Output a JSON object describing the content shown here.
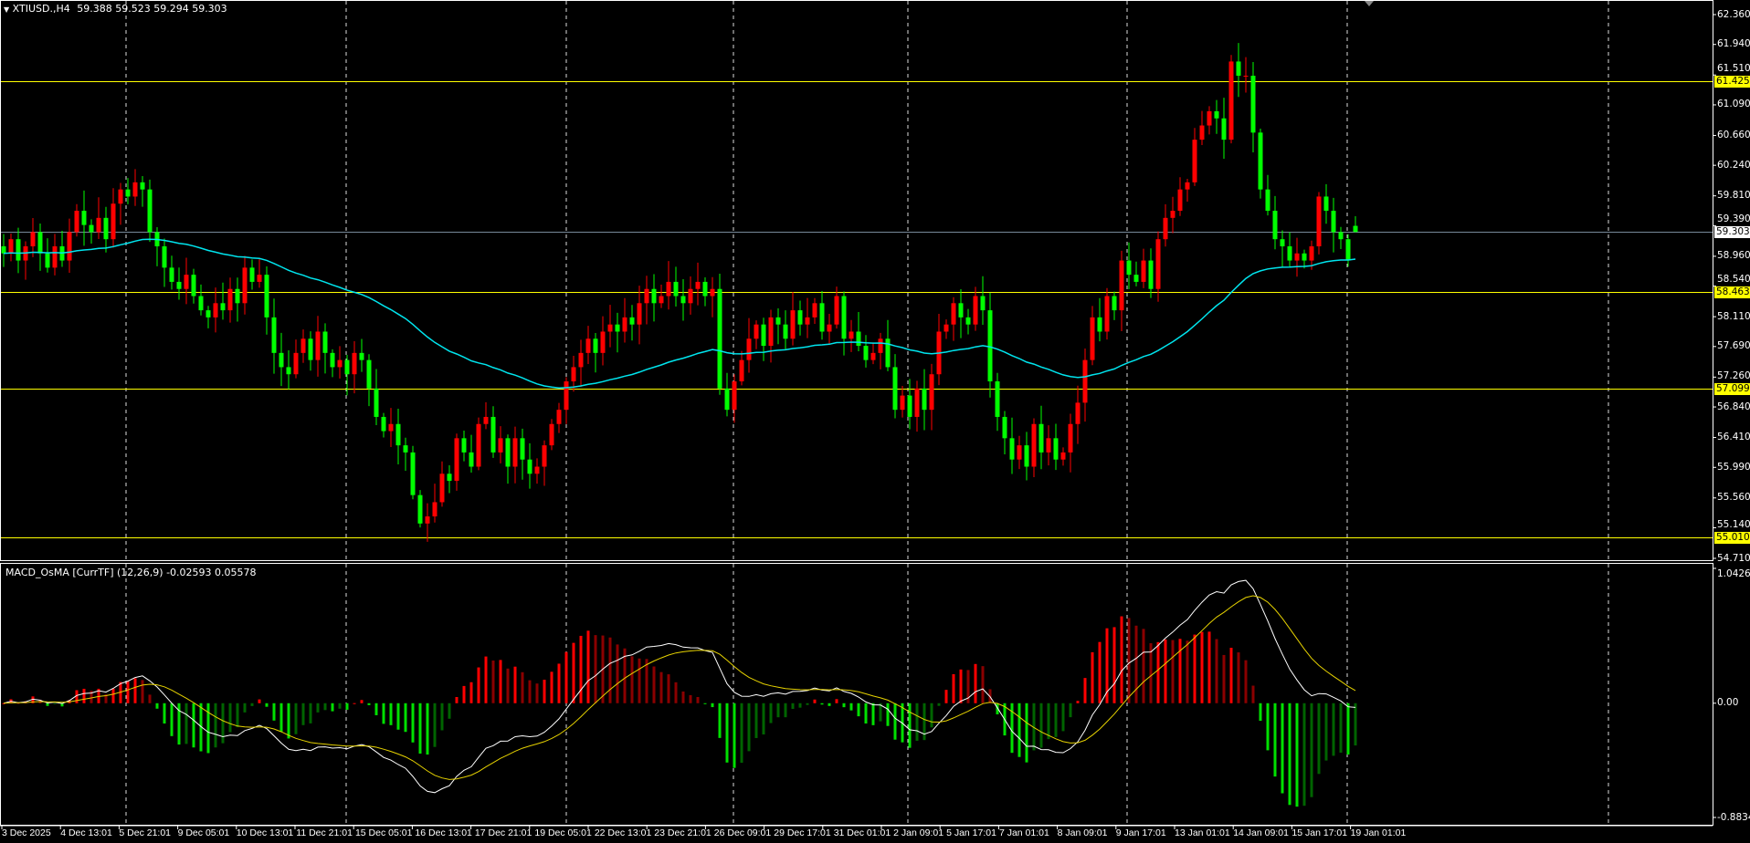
{
  "header": {
    "symbol_label": "XTIUSD.,H4",
    "ohlc": "59.388 59.523 59.294 59.303"
  },
  "indicator": {
    "label": "MACD_OsMA [CurrTF] (12,26,9) -0.02593 0.05578",
    "fast": 12,
    "slow": 26,
    "signal": 9,
    "axis_labels": [
      "1.04267",
      "0.00",
      "-0.88342"
    ],
    "axis_range": [
      -0.88342,
      1.04267
    ]
  },
  "colors": {
    "background": "#000000",
    "bear_candle": "#00ff00",
    "bull_candle": "#ff0000",
    "ma_line": "#00e5ee",
    "level_line": "#ffff00",
    "price_line": "#778899",
    "macd_line": "#ffffff",
    "signal_line": "#e6d200",
    "hist_pos_up": "#ff0000",
    "hist_pos_down": "#8b0000",
    "hist_neg_down": "#00e000",
    "hist_neg_up": "#006400"
  },
  "price_axis": {
    "ticks": [
      "62.360",
      "61.940",
      "61.510",
      "61.090",
      "60.660",
      "60.240",
      "59.810",
      "59.390",
      "58.960",
      "58.540",
      "58.110",
      "57.690",
      "57.260",
      "56.840",
      "56.410",
      "55.990",
      "55.560",
      "55.140",
      "54.710"
    ],
    "range": [
      54.71,
      62.36
    ],
    "levels": [
      "61.425",
      "58.463",
      "57.099",
      "55.010"
    ],
    "current_price": "59.303"
  },
  "time_axis": {
    "labels": [
      "3 Dec 2025",
      "4 Dec 13:01",
      "5 Dec 21:01",
      "9 Dec 05:01",
      "10 Dec 13:01",
      "11 Dec 21:01",
      "15 Dec 05:01",
      "16 Dec 13:01",
      "17 Dec 21:01",
      "19 Dec 05:01",
      "22 Dec 13:01",
      "23 Dec 21:01",
      "26 Dec 09:01",
      "29 Dec 17:01",
      "31 Dec 01:01",
      "2 Jan 09:01",
      "5 Jan 17:01",
      "7 Jan 01:01",
      "8 Jan 09:01",
      "9 Jan 17:01",
      "13 Jan 01:01",
      "14 Jan 09:01",
      "15 Jan 17:01",
      "19 Jan 01:01"
    ]
  },
  "chart_data": {
    "type": "candlestick",
    "timeframe": "H4",
    "closes": [
      59.0,
      59.2,
      58.9,
      59.1,
      59.3,
      59.0,
      58.8,
      59.1,
      58.9,
      59.3,
      59.6,
      59.4,
      59.3,
      59.5,
      59.2,
      59.7,
      59.9,
      59.8,
      60.0,
      59.9,
      59.3,
      59.1,
      58.8,
      58.6,
      58.5,
      58.7,
      58.4,
      58.2,
      58.1,
      58.3,
      58.2,
      58.5,
      58.3,
      58.8,
      58.6,
      58.7,
      58.1,
      57.6,
      57.4,
      57.3,
      57.6,
      57.8,
      57.5,
      57.9,
      57.6,
      57.4,
      57.5,
      57.3,
      57.6,
      57.5,
      57.1,
      56.7,
      56.5,
      56.6,
      56.3,
      56.2,
      55.6,
      55.2,
      55.3,
      55.5,
      55.9,
      55.8,
      56.4,
      56.2,
      56.0,
      56.6,
      56.7,
      56.2,
      56.4,
      56.0,
      56.4,
      56.1,
      55.9,
      56.0,
      56.3,
      56.6,
      56.8,
      57.2,
      57.4,
      57.6,
      57.8,
      57.6,
      57.9,
      58.0,
      57.9,
      58.1,
      58.0,
      58.3,
      58.5,
      58.3,
      58.4,
      58.6,
      58.4,
      58.3,
      58.5,
      58.6,
      58.4,
      58.5,
      57.1,
      56.8,
      57.2,
      57.5,
      57.8,
      58.0,
      57.7,
      58.1,
      58.0,
      57.8,
      58.2,
      58.0,
      58.1,
      58.3,
      57.9,
      58.0,
      58.4,
      57.8,
      57.9,
      57.7,
      57.5,
      57.6,
      57.8,
      57.4,
      56.8,
      57.0,
      56.7,
      57.1,
      56.8,
      57.3,
      57.9,
      58.0,
      58.3,
      58.1,
      58.0,
      58.4,
      58.2,
      57.2,
      56.7,
      56.4,
      56.1,
      56.3,
      56.0,
      56.6,
      56.2,
      56.4,
      56.1,
      56.2,
      56.6,
      56.9,
      57.5,
      58.1,
      57.9,
      58.4,
      58.2,
      58.9,
      58.7,
      58.6,
      58.9,
      58.5,
      59.2,
      59.5,
      59.6,
      59.9,
      60.0,
      60.6,
      60.8,
      61.0,
      60.9,
      60.6,
      61.7,
      61.5,
      61.5,
      60.7,
      59.9,
      59.6,
      59.2,
      59.1,
      58.9,
      59.0,
      58.9,
      59.1,
      59.8,
      59.6,
      59.3,
      59.2,
      58.9,
      59.303
    ],
    "last_bar": {
      "open": 59.388,
      "high": 59.523,
      "low": 59.294,
      "close": 59.303
    },
    "grid": true
  }
}
